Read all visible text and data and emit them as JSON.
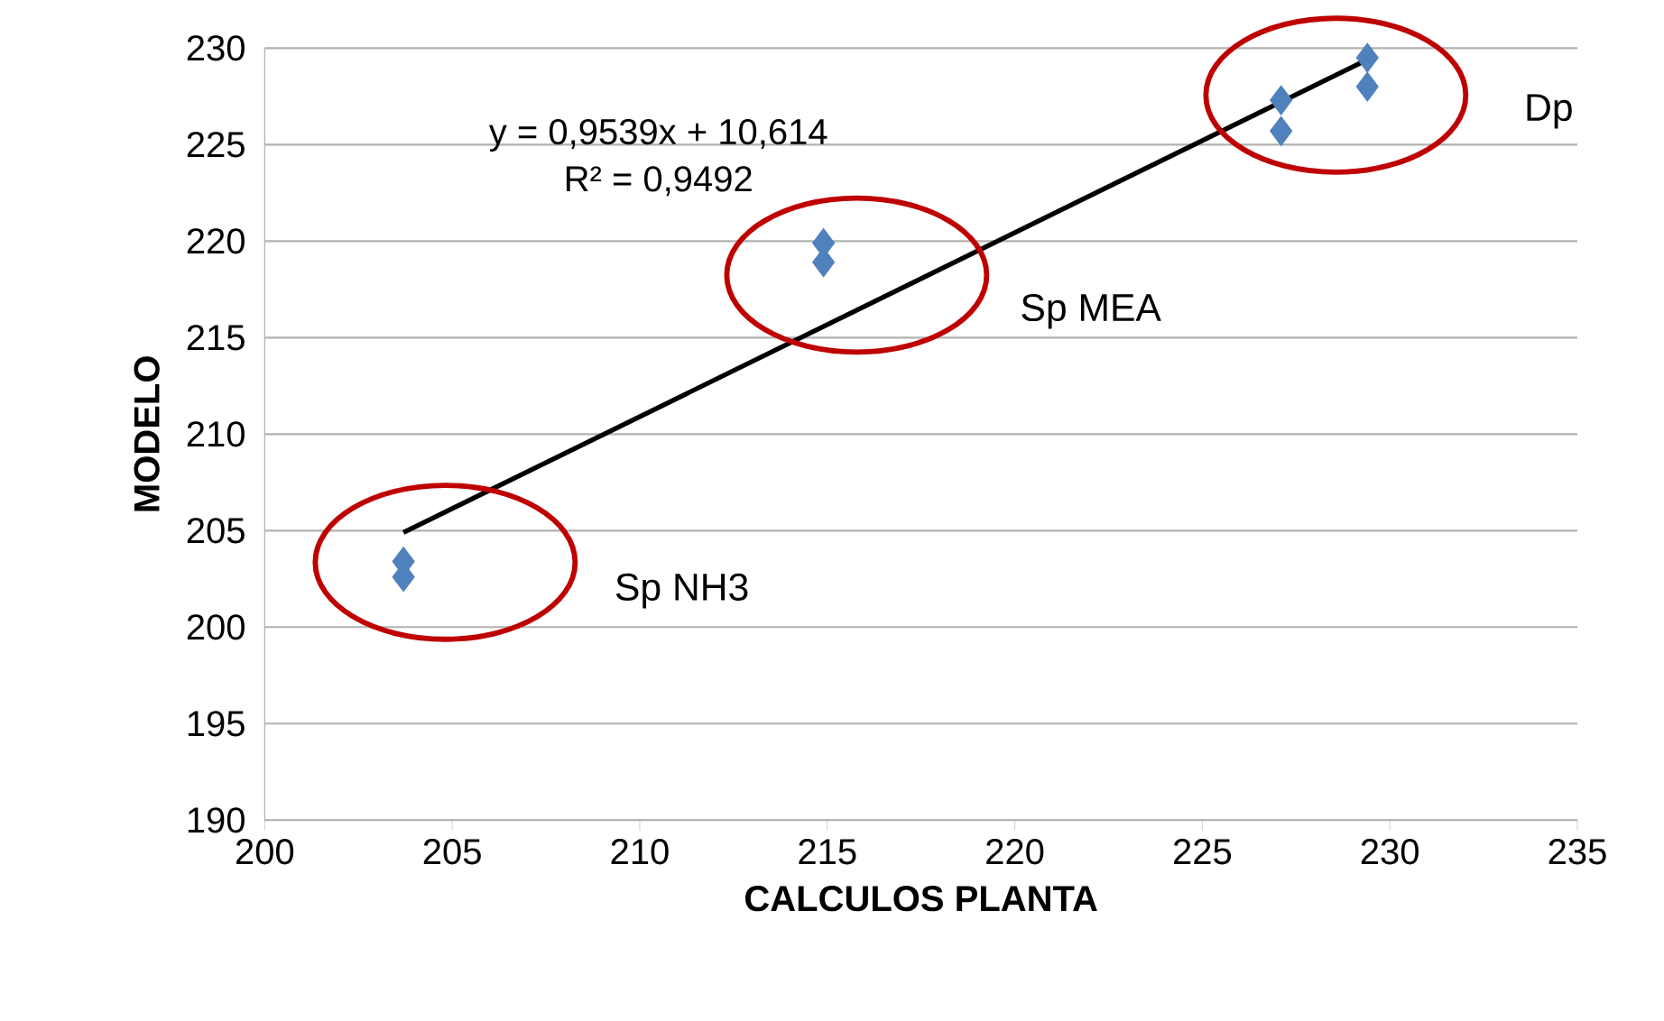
{
  "chart_data": {
    "type": "scatter",
    "xlabel": "CALCULOS PLANTA",
    "ylabel": "MODELO",
    "xlim": [
      200,
      235
    ],
    "xticks": [
      200,
      205,
      210,
      215,
      220,
      225,
      230,
      235
    ],
    "ylim": [
      190,
      230
    ],
    "yticks": [
      190,
      195,
      200,
      205,
      210,
      215,
      220,
      225,
      230
    ],
    "grid": "y",
    "series": [
      {
        "type": "scatter",
        "marker": "diamond",
        "color": "#4f81bd",
        "x": [
          203.7,
          203.7,
          214.9,
          214.9,
          227.1,
          227.1,
          229.4,
          229.4
        ],
        "values": [
          203.4,
          202.6,
          219.9,
          218.9,
          227.3,
          225.7,
          229.5,
          228.0
        ]
      },
      {
        "type": "line",
        "marker": "none",
        "line_style": "solid",
        "color": "#000000",
        "x": [
          203.7,
          229.4
        ],
        "values": [
          204.9,
          229.4
        ]
      }
    ],
    "annotations": [
      "y = 0,9539x + 10,614",
      "R² = 0,9492",
      "Sp NH3",
      "Sp MEA",
      "Dp"
    ]
  }
}
